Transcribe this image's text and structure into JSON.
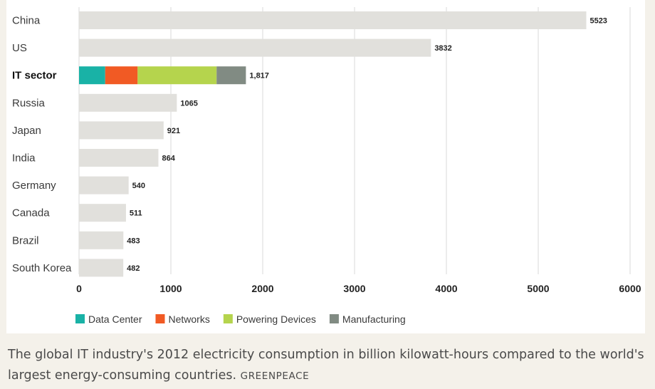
{
  "chart_data": {
    "type": "bar",
    "orientation": "horizontal",
    "categories": [
      "China",
      "US",
      "IT sector",
      "Russia",
      "Japan",
      "India",
      "Germany",
      "Canada",
      "Brazil",
      "South Korea"
    ],
    "values": [
      5523,
      3832,
      1817,
      1065,
      921,
      864,
      540,
      511,
      483,
      482
    ],
    "value_labels": [
      "5523",
      "3832",
      "1,817",
      "1065",
      "921",
      "864",
      "540",
      "511",
      "483",
      "482"
    ],
    "highlight_category": "IT sector",
    "stacked_breakdown": {
      "category": "IT sector",
      "series": [
        {
          "name": "Data Center",
          "value": 285,
          "color": "#19b2a6"
        },
        {
          "name": "Networks",
          "value": 353,
          "color": "#f15a24"
        },
        {
          "name": "Powering Devices",
          "value": 860,
          "color": "#b5d44d"
        },
        {
          "name": "Manufacturing",
          "value": 319,
          "color": "#818b83"
        }
      ]
    },
    "bar_color": "#e1e0dc",
    "xlim": [
      0,
      6000
    ],
    "xticks": [
      0,
      1000,
      2000,
      3000,
      4000,
      5000,
      6000
    ],
    "xtick_labels": [
      "0",
      "1000",
      "2000",
      "3000",
      "4000",
      "5000",
      "6000"
    ],
    "grid": "vertical",
    "legend_placement": "bottom-left",
    "xlabel": "",
    "ylabel": ""
  },
  "caption": {
    "text": "The global IT industry's 2012 electricity consumption in billion kilowatt-hours compared to the world's largest energy-consuming countries.",
    "credit": "GREENPEACE"
  }
}
